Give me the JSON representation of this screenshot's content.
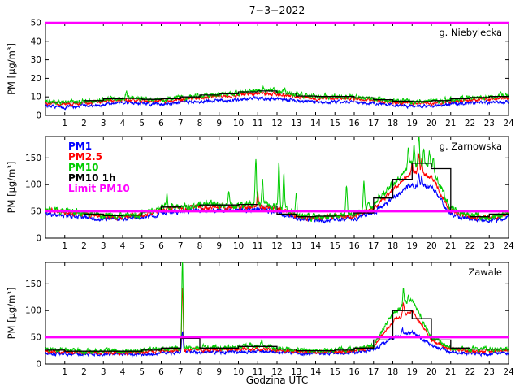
{
  "figure": {
    "title": "7−3−2022",
    "xlabel": "Godzina UTC",
    "background": "#ffffff",
    "limit_color": "#ff00ff",
    "axis_color": "#000000"
  },
  "legend": {
    "entries": [
      {
        "label": "PM1",
        "color": "#0000ff"
      },
      {
        "label": "PM2.5",
        "color": "#ff0000"
      },
      {
        "label": "PM10",
        "color": "#00cc00"
      },
      {
        "label": "PM10 1h",
        "color": "#000000"
      },
      {
        "label": "Limit PM10",
        "color": "#ff00ff"
      }
    ]
  },
  "chart_data": [
    {
      "type": "line",
      "station_label": "g. Niebylecka",
      "ylabel": "PM [µg/m³]",
      "xlim": [
        0,
        24
      ],
      "ylim": [
        0,
        50
      ],
      "yticks": [
        0,
        10,
        20,
        30,
        40,
        50
      ],
      "xticks": [
        1,
        2,
        3,
        4,
        5,
        6,
        7,
        8,
        9,
        10,
        11,
        12,
        13,
        14,
        15,
        16,
        17,
        18,
        19,
        20,
        21,
        22,
        23,
        24
      ],
      "limit": 50,
      "noise": 0.6,
      "legend": false,
      "series": [
        {
          "name": "PM1",
          "color": "#0000ff",
          "values": [
            5,
            4.5,
            5,
            6,
            7,
            6.5,
            6,
            7,
            7.5,
            8,
            8.5,
            9.5,
            9,
            8,
            7,
            7.5,
            7,
            6.5,
            5.5,
            5,
            5,
            6,
            6.5,
            7,
            7.5
          ]
        },
        {
          "name": "PM2.5",
          "color": "#ff0000",
          "values": [
            6.5,
            6,
            6.5,
            7.5,
            8.5,
            8,
            7.5,
            8.5,
            9.5,
            10.5,
            11,
            12,
            11.5,
            10,
            9,
            9.5,
            9,
            8,
            7,
            6.5,
            6.5,
            7.5,
            8.5,
            9,
            9.5
          ]
        },
        {
          "name": "PM10",
          "color": "#00cc00",
          "noise": 0.9,
          "values": [
            7.5,
            7,
            7.5,
            8.5,
            9.5,
            9,
            8.5,
            9.5,
            10.5,
            11.5,
            12,
            13.5,
            13,
            11,
            10,
            10.5,
            10,
            9,
            8,
            7.5,
            7.5,
            8.5,
            9.5,
            10,
            10.5
          ],
          "spikes": [
            [
              4.2,
              12.5
            ],
            [
              11.3,
              16
            ],
            [
              12.4,
              15
            ],
            [
              23.6,
              13
            ]
          ]
        },
        {
          "name": "PM10 1h",
          "color": "#000000",
          "step": true,
          "values": [
            7.2,
            7.2,
            8,
            9,
            9.2,
            8.7,
            9,
            10,
            11,
            11.7,
            12.7,
            13.2,
            12,
            10.5,
            10.2,
            10.2,
            9.5,
            8.5,
            7.7,
            7.5,
            8,
            9,
            9.7,
            10.2
          ]
        }
      ]
    },
    {
      "type": "line",
      "station_label": "g. Zarnowska",
      "ylabel": "PM [µg/m³]",
      "xlim": [
        0,
        24
      ],
      "ylim": [
        0,
        190
      ],
      "yticks": [
        0,
        50,
        100,
        150
      ],
      "xticks": [
        1,
        2,
        3,
        4,
        5,
        6,
        7,
        8,
        9,
        10,
        11,
        12,
        13,
        14,
        15,
        16,
        17,
        18,
        19,
        20,
        21,
        22,
        23,
        24
      ],
      "limit": 50,
      "noise": 3.2,
      "legend": true,
      "series": [
        {
          "name": "PM1",
          "color": "#0000ff",
          "values": [
            45,
            43,
            40,
            36,
            37,
            38,
            48,
            50,
            52,
            52,
            52,
            54,
            48,
            36,
            34,
            36,
            38,
            48,
            75,
            100,
            95,
            45,
            36,
            32,
            40
          ],
          "spikes": [
            [
              19.35,
              118
            ],
            [
              19.5,
              115
            ]
          ]
        },
        {
          "name": "PM2.5",
          "color": "#ff0000",
          "values": [
            52,
            48,
            45,
            40,
            41,
            43,
            55,
            57,
            58,
            59,
            58,
            60,
            55,
            40,
            38,
            40,
            42,
            57,
            90,
            125,
            115,
            50,
            40,
            36,
            45
          ],
          "spikes": [
            [
              11.0,
              90
            ],
            [
              19.0,
              140
            ],
            [
              19.35,
              160
            ],
            [
              19.5,
              150
            ]
          ]
        },
        {
          "name": "PM10",
          "color": "#00cc00",
          "noise": 4.5,
          "values": [
            55,
            50,
            48,
            42,
            43,
            45,
            58,
            60,
            62,
            63,
            62,
            65,
            60,
            42,
            40,
            42,
            45,
            62,
            100,
            140,
            135,
            55,
            42,
            38,
            48
          ],
          "spikes": [
            [
              6.3,
              80
            ],
            [
              9.5,
              85
            ],
            [
              10.9,
              150
            ],
            [
              11.25,
              115
            ],
            [
              12.1,
              140
            ],
            [
              12.35,
              120
            ],
            [
              13.0,
              75
            ],
            [
              15.6,
              100
            ],
            [
              16.5,
              105
            ],
            [
              17.3,
              80
            ],
            [
              18.8,
              165
            ],
            [
              19.1,
              175
            ],
            [
              19.35,
              190
            ],
            [
              19.6,
              170
            ],
            [
              19.9,
              160
            ],
            [
              20.1,
              150
            ]
          ]
        },
        {
          "name": "PM10 1h",
          "color": "#000000",
          "step": true,
          "values": [
            52,
            50,
            45,
            42,
            43,
            50,
            58,
            60,
            62,
            62,
            63,
            60,
            45,
            40,
            41,
            43,
            47,
            75,
            110,
            140,
            130,
            50,
            40,
            45
          ]
        }
      ]
    },
    {
      "type": "line",
      "station_label": "Zawale",
      "ylabel": "PM [µg/m³]",
      "xlim": [
        0,
        24
      ],
      "ylim": [
        0,
        190
      ],
      "yticks": [
        0,
        50,
        100,
        150
      ],
      "xticks": [
        1,
        2,
        3,
        4,
        5,
        6,
        7,
        8,
        9,
        10,
        11,
        12,
        13,
        14,
        15,
        16,
        17,
        18,
        19,
        20,
        21,
        22,
        23,
        24
      ],
      "limit": 50,
      "noise": 2.2,
      "legend": false,
      "series": [
        {
          "name": "PM1",
          "color": "#0000ff",
          "values": [
            20,
            19,
            18,
            18,
            18,
            18,
            20,
            22,
            23,
            22,
            23,
            24,
            22,
            20,
            19,
            20,
            21,
            27,
            50,
            60,
            35,
            22,
            20,
            19,
            21
          ],
          "spikes": [
            [
              7.1,
              60
            ],
            [
              18.5,
              65
            ]
          ]
        },
        {
          "name": "PM2.5",
          "color": "#ff0000",
          "values": [
            24,
            22,
            21,
            22,
            21,
            22,
            24,
            26,
            27,
            26,
            27,
            29,
            26,
            23,
            22,
            23,
            24,
            32,
            80,
            100,
            45,
            27,
            24,
            23,
            26
          ],
          "spikes": [
            [
              7.1,
              145
            ],
            [
              18.55,
              115
            ]
          ]
        },
        {
          "name": "PM10",
          "color": "#00cc00",
          "noise": 3.2,
          "values": [
            28,
            26,
            24,
            25,
            24,
            25,
            28,
            30,
            32,
            30,
            32,
            35,
            30,
            26,
            25,
            26,
            28,
            35,
            95,
            120,
            50,
            30,
            28,
            27,
            30
          ],
          "spikes": [
            [
              7.1,
              195
            ],
            [
              11.2,
              45
            ],
            [
              18.55,
              140
            ],
            [
              18.8,
              130
            ]
          ]
        },
        {
          "name": "PM10 1h",
          "color": "#000000",
          "step": true,
          "values": [
            26,
            24,
            24,
            24,
            24,
            26,
            30,
            48,
            30,
            30,
            33,
            33,
            28,
            25,
            25,
            26,
            30,
            45,
            100,
            85,
            45,
            30,
            28,
            28
          ]
        }
      ]
    }
  ]
}
